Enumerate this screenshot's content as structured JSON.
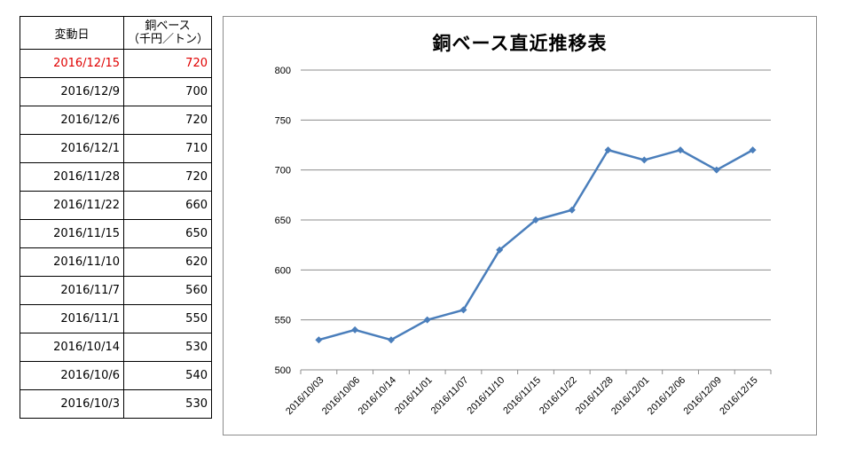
{
  "table": {
    "header_date": "変動日",
    "header_price_line1": "銅ベース",
    "header_price_line2": "（千円／トン）",
    "rows": [
      {
        "date": "2016/12/15",
        "price": "720"
      },
      {
        "date": "2016/12/9",
        "price": "700"
      },
      {
        "date": "2016/12/6",
        "price": "720"
      },
      {
        "date": "2016/12/1",
        "price": "710"
      },
      {
        "date": "2016/11/28",
        "price": "720"
      },
      {
        "date": "2016/11/22",
        "price": "660"
      },
      {
        "date": "2016/11/15",
        "price": "650"
      },
      {
        "date": "2016/11/10",
        "price": "620"
      },
      {
        "date": "2016/11/7",
        "price": "560"
      },
      {
        "date": "2016/11/1",
        "price": "550"
      },
      {
        "date": "2016/10/14",
        "price": "530"
      },
      {
        "date": "2016/10/6",
        "price": "540"
      },
      {
        "date": "2016/10/3",
        "price": "530"
      }
    ],
    "highlight_color": "#e00000"
  },
  "chart_data": {
    "type": "line",
    "title": "銅ベース直近推移表",
    "categories": [
      "2016/10/03",
      "2016/10/06",
      "2016/10/14",
      "2016/11/01",
      "2016/11/07",
      "2016/11/10",
      "2016/11/15",
      "2016/11/22",
      "2016/11/28",
      "2016/12/01",
      "2016/12/06",
      "2016/12/09",
      "2016/12/15"
    ],
    "series": [
      {
        "values": [
          530,
          540,
          530,
          550,
          560,
          620,
          650,
          660,
          720,
          710,
          720,
          700,
          720
        ]
      }
    ],
    "ylim": [
      500,
      800
    ],
    "yticks": [
      500,
      550,
      600,
      650,
      700,
      750,
      800
    ],
    "xlabel": "",
    "ylabel": "",
    "grid": true,
    "marker": "diamond",
    "line_color": "#4a7ebb"
  }
}
